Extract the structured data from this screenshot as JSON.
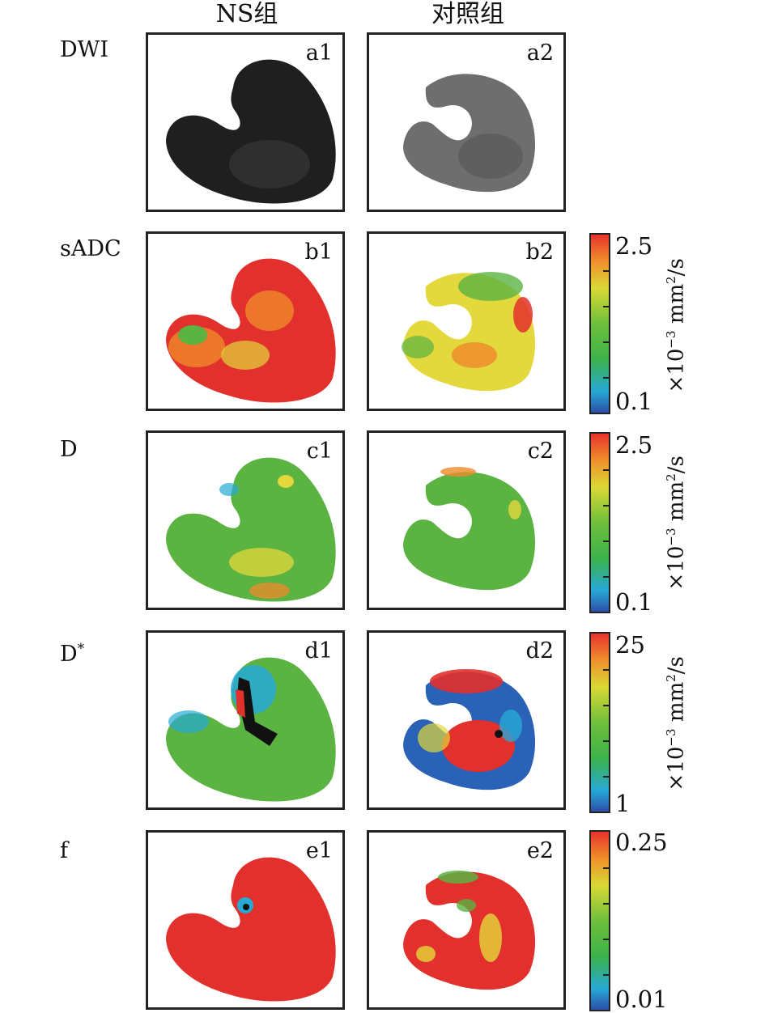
{
  "columns": [
    "NS组",
    "对照组"
  ],
  "rows": [
    {
      "label": "DWI",
      "sup": "",
      "panels": [
        "a1",
        "a2"
      ],
      "colorbar": null
    },
    {
      "label": "sADC",
      "sup": "",
      "panels": [
        "b1",
        "b2"
      ],
      "colorbar": {
        "max": "2.5",
        "min": "0.1",
        "unit_prefix": "×10",
        "unit_exp": "−3",
        "unit_suffix": " mm",
        "unit_exp2": "2",
        "unit_tail": "/s"
      }
    },
    {
      "label": "D",
      "sup": "",
      "panels": [
        "c1",
        "c2"
      ],
      "colorbar": {
        "max": "2.5",
        "min": "0.1",
        "unit_prefix": "×10",
        "unit_exp": "−3",
        "unit_suffix": " mm",
        "unit_exp2": "2",
        "unit_tail": "/s"
      }
    },
    {
      "label": "D",
      "sup": "*",
      "panels": [
        "d1",
        "d2"
      ],
      "colorbar": {
        "max": "25",
        "min": "1",
        "unit_prefix": "×10",
        "unit_exp": "−3",
        "unit_suffix": " mm",
        "unit_exp2": "2",
        "unit_tail": "/s"
      }
    },
    {
      "label": "f",
      "sup": "",
      "panels": [
        "e1",
        "e2"
      ],
      "colorbar": {
        "max": "0.25",
        "min": "0.01",
        "unit_prefix": "",
        "unit_exp": "",
        "unit_suffix": "",
        "unit_exp2": "",
        "unit_tail": ""
      }
    }
  ],
  "colors": {
    "red": "#e2302c",
    "green": "#5bb342",
    "blue": "#2a62b8",
    "yellow": "#e3d83c",
    "orange": "#ef8a2c",
    "dwi_dark": "#222222",
    "dwi_gray": "#6e6e6e"
  }
}
